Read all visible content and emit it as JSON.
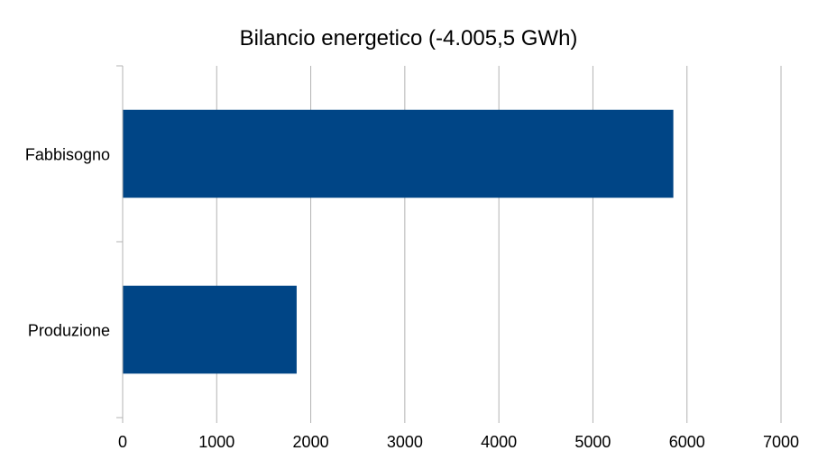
{
  "chart_data": {
    "type": "bar",
    "orientation": "horizontal",
    "title": "Bilancio energetico (-4.005,5 GWh)",
    "categories": [
      "Fabbisogno",
      "Produzione"
    ],
    "values": [
      5855,
      1850
    ],
    "xlim": [
      0,
      7000
    ],
    "xticks": [
      0,
      1000,
      2000,
      3000,
      4000,
      5000,
      6000,
      7000
    ],
    "grid": true,
    "legend": "none",
    "bar_color": "#004586"
  }
}
